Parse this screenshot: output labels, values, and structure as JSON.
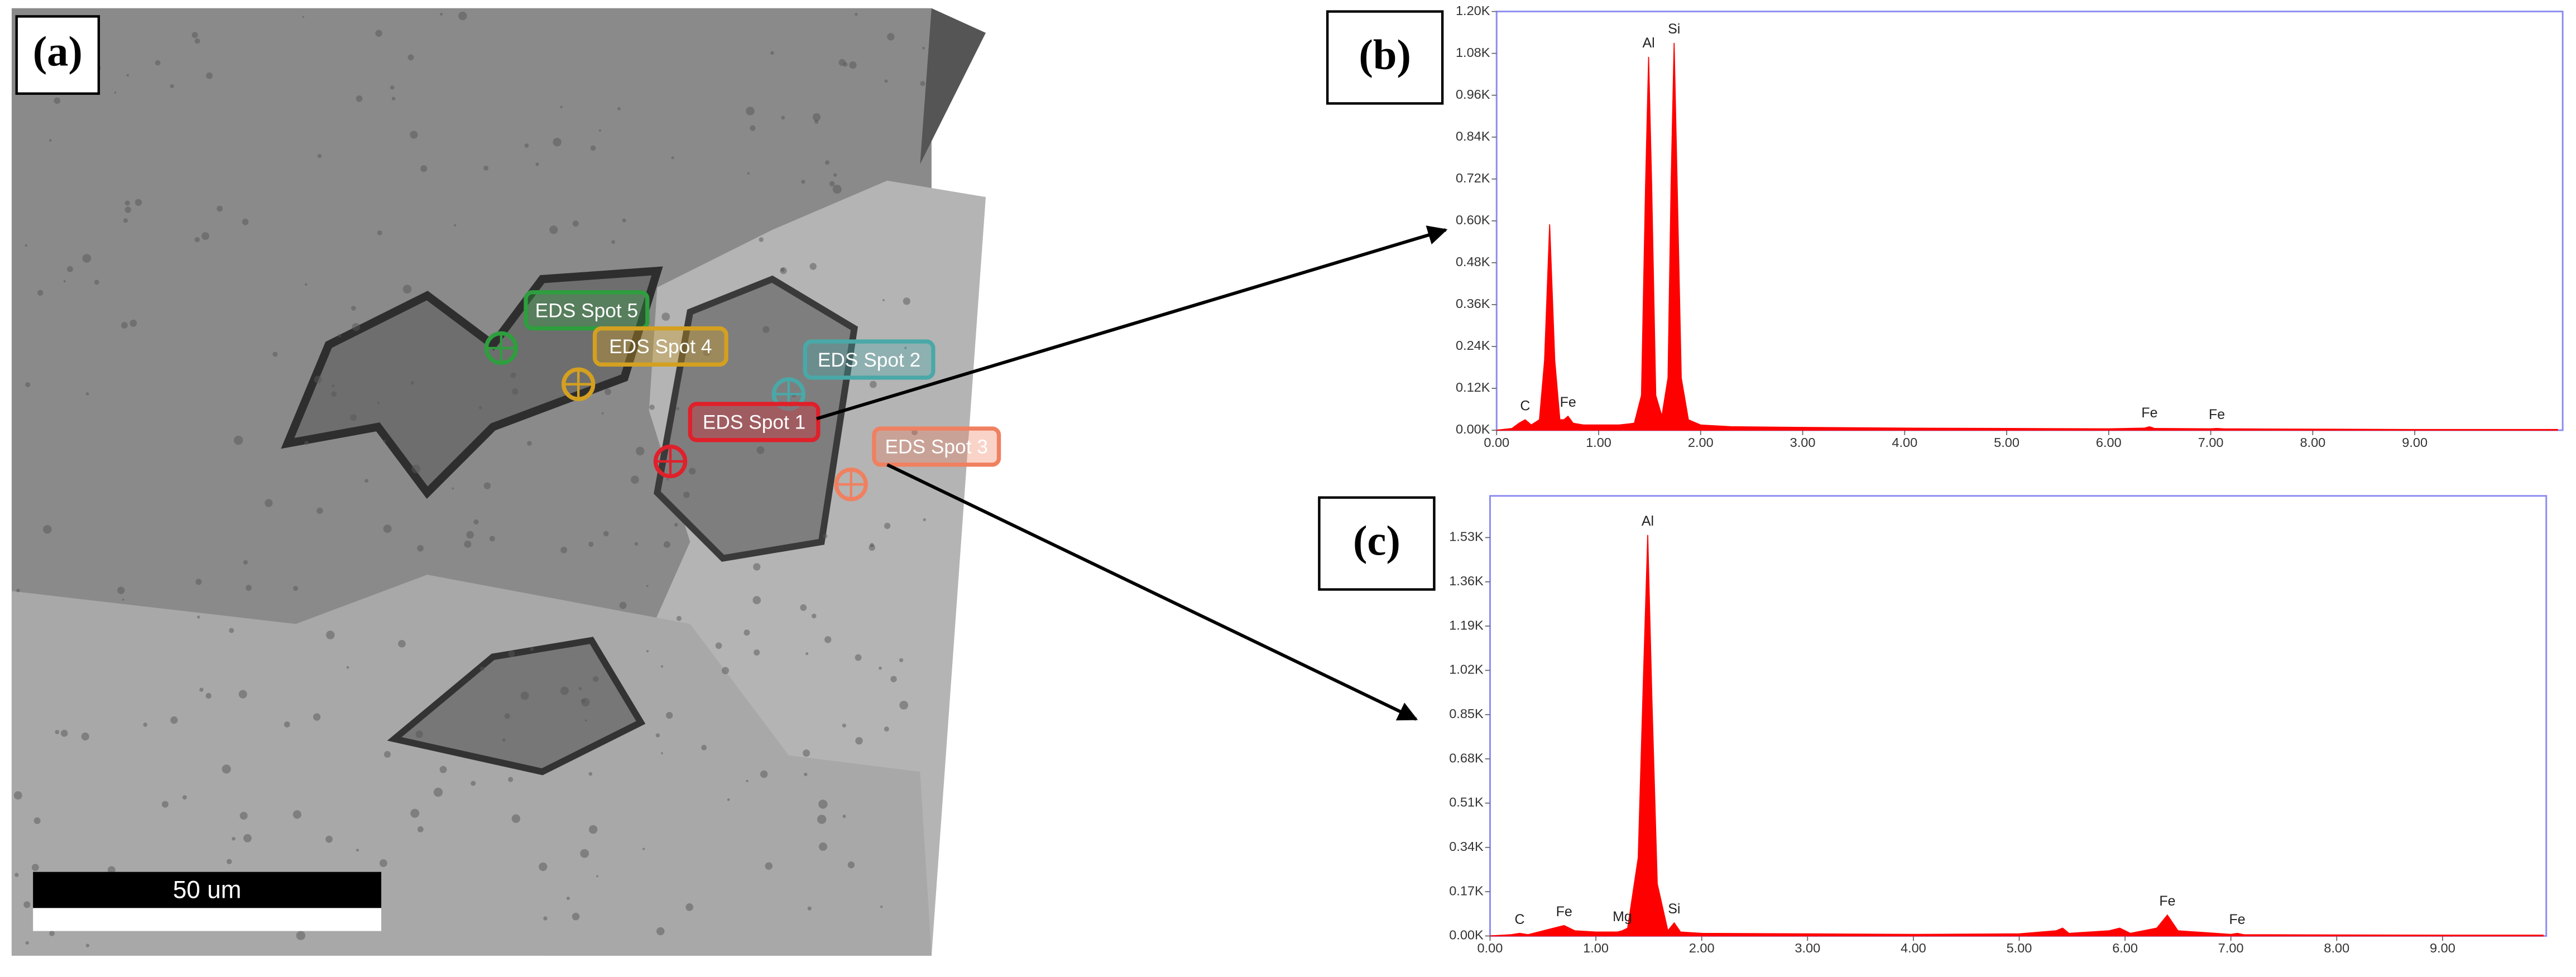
{
  "panel_a": {
    "label": "(a)",
    "spots": [
      "EDS Spot 5",
      "EDS Spot 4",
      "EDS Spot 2",
      "EDS Spot 1",
      "EDS Spot 3"
    ],
    "scale_bar": "50 um"
  },
  "chart_data": [
    {
      "type": "area",
      "label": "(b)",
      "color": "#ff0000",
      "x": [
        0,
        0.15,
        0.22,
        0.28,
        0.34,
        0.42,
        0.47,
        0.52,
        0.57,
        0.62,
        0.66,
        0.7,
        0.75,
        0.85,
        1.0,
        1.2,
        1.35,
        1.42,
        1.46,
        1.49,
        1.52,
        1.56,
        1.62,
        1.68,
        1.71,
        1.74,
        1.77,
        1.81,
        1.88,
        2.0,
        2.3,
        3.0,
        4.0,
        5.0,
        6.0,
        6.35,
        6.4,
        6.45,
        7.0,
        7.06,
        7.12,
        8.0,
        9.0,
        10.4
      ],
      "values": [
        0,
        0.005,
        0.02,
        0.03,
        0.015,
        0.03,
        0.2,
        0.59,
        0.2,
        0.03,
        0.03,
        0.04,
        0.02,
        0.015,
        0.015,
        0.015,
        0.02,
        0.1,
        0.7,
        1.07,
        0.7,
        0.1,
        0.04,
        0.15,
        0.7,
        1.11,
        0.7,
        0.15,
        0.03,
        0.015,
        0.01,
        0.008,
        0.006,
        0.005,
        0.004,
        0.006,
        0.01,
        0.005,
        0.004,
        0.005,
        0.004,
        0.003,
        0.002,
        0.002
      ],
      "peaks": [
        {
          "label": "C",
          "x": 0.28,
          "y": 0.03
        },
        {
          "label": "Fe",
          "x": 0.7,
          "y": 0.04
        },
        {
          "label": "Al",
          "x": 1.49,
          "y": 1.07
        },
        {
          "label": "Si",
          "x": 1.74,
          "y": 1.11
        },
        {
          "label": "Fe",
          "x": 6.4,
          "y": 0.01
        },
        {
          "label": "Fe",
          "x": 7.06,
          "y": 0.005
        }
      ],
      "xlim": [
        0,
        10.45
      ],
      "ylim": [
        0,
        1.2
      ],
      "xticks": [
        {
          "value": 0,
          "label": "0.00"
        },
        {
          "value": 1,
          "label": "1.00"
        },
        {
          "value": 2,
          "label": "2.00"
        },
        {
          "value": 3,
          "label": "3.00"
        },
        {
          "value": 4,
          "label": "4.00"
        },
        {
          "value": 5,
          "label": "5.00"
        },
        {
          "value": 6,
          "label": "6.00"
        },
        {
          "value": 7,
          "label": "7.00"
        },
        {
          "value": 8,
          "label": "8.00"
        },
        {
          "value": 9,
          "label": "9.00"
        }
      ],
      "yticks": [
        {
          "value": 0,
          "label": "0.00K"
        },
        {
          "value": 0.12,
          "label": "0.12K"
        },
        {
          "value": 0.24,
          "label": "0.24K"
        },
        {
          "value": 0.36,
          "label": "0.36K"
        },
        {
          "value": 0.48,
          "label": "0.48K"
        },
        {
          "value": 0.6,
          "label": "0.60K"
        },
        {
          "value": 0.72,
          "label": "0.72K"
        },
        {
          "value": 0.84,
          "label": "0.84K"
        },
        {
          "value": 0.96,
          "label": "0.96K"
        },
        {
          "value": 1.08,
          "label": "1.08K"
        },
        {
          "value": 1.2,
          "label": "1.20K"
        }
      ]
    },
    {
      "type": "area",
      "label": "(c)",
      "color": "#ff0000",
      "x": [
        0,
        0.2,
        0.28,
        0.36,
        0.6,
        0.7,
        0.8,
        1.0,
        1.2,
        1.25,
        1.3,
        1.4,
        1.45,
        1.49,
        1.53,
        1.58,
        1.68,
        1.74,
        1.8,
        2.0,
        3.0,
        4.0,
        5.0,
        5.35,
        5.41,
        5.47,
        5.85,
        5.95,
        6.05,
        6.3,
        6.4,
        6.5,
        7.0,
        7.06,
        7.12,
        8.0,
        9.0,
        9.95
      ],
      "values": [
        0,
        0.005,
        0.01,
        0.005,
        0.03,
        0.04,
        0.02,
        0.015,
        0.015,
        0.02,
        0.03,
        0.3,
        1.0,
        1.54,
        0.9,
        0.2,
        0.02,
        0.05,
        0.015,
        0.01,
        0.008,
        0.006,
        0.008,
        0.02,
        0.03,
        0.01,
        0.02,
        0.03,
        0.01,
        0.03,
        0.08,
        0.02,
        0.006,
        0.01,
        0.005,
        0.004,
        0.003,
        0.003
      ],
      "peaks": [
        {
          "label": "C",
          "x": 0.28,
          "y": 0.01
        },
        {
          "label": "Fe",
          "x": 0.7,
          "y": 0.04
        },
        {
          "label": "Mg",
          "x": 1.25,
          "y": 0.02
        },
        {
          "label": "Al",
          "x": 1.49,
          "y": 1.54
        },
        {
          "label": "Si",
          "x": 1.74,
          "y": 0.05
        },
        {
          "label": "Fe",
          "x": 6.4,
          "y": 0.08
        },
        {
          "label": "Fe",
          "x": 7.06,
          "y": 0.01
        }
      ],
      "xlim": [
        0,
        9.98
      ],
      "ylim": [
        0,
        1.69
      ],
      "xticks": [
        {
          "value": 0,
          "label": "0.00"
        },
        {
          "value": 1,
          "label": "1.00"
        },
        {
          "value": 2,
          "label": "2.00"
        },
        {
          "value": 3,
          "label": "3.00"
        },
        {
          "value": 4,
          "label": "4.00"
        },
        {
          "value": 5,
          "label": "5.00"
        },
        {
          "value": 6,
          "label": "6.00"
        },
        {
          "value": 7,
          "label": "7.00"
        },
        {
          "value": 8,
          "label": "8.00"
        },
        {
          "value": 9,
          "label": "9.00"
        }
      ],
      "yticks": [
        {
          "value": 0,
          "label": "0.00K"
        },
        {
          "value": 0.17,
          "label": "0.17K"
        },
        {
          "value": 0.34,
          "label": "0.34K"
        },
        {
          "value": 0.51,
          "label": "0.51K"
        },
        {
          "value": 0.68,
          "label": "0.68K"
        },
        {
          "value": 0.85,
          "label": "0.85K"
        },
        {
          "value": 1.02,
          "label": "1.02K"
        },
        {
          "value": 1.19,
          "label": "1.19K"
        },
        {
          "value": 1.36,
          "label": "1.36K"
        },
        {
          "value": 1.53,
          "label": "1.53K"
        }
      ]
    }
  ]
}
